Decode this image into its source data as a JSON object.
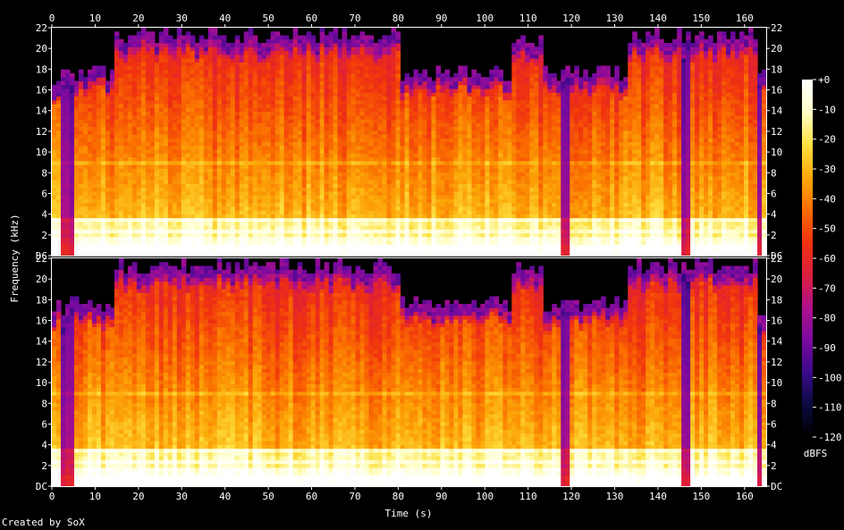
{
  "chart_data": {
    "type": "heatmap",
    "title": "",
    "xlabel": "Time (s)",
    "ylabel": "Frequency (kHz)",
    "xlim": [
      0,
      165
    ],
    "ylim": [
      0,
      22
    ],
    "x_ticks": [
      0,
      10,
      20,
      30,
      40,
      50,
      60,
      70,
      80,
      90,
      100,
      110,
      120,
      130,
      140,
      150,
      160
    ],
    "y_tick_labels": [
      "DC",
      "2",
      "4",
      "6",
      "8",
      "10",
      "12",
      "14",
      "16",
      "18",
      "20",
      "22"
    ],
    "channels": 2,
    "colorbar": {
      "label": "dBFS",
      "range": [
        -120,
        0
      ],
      "tick_labels": [
        "+0",
        "-10",
        "-20",
        "-30",
        "-40",
        "-50",
        "-60",
        "-70",
        "-80",
        "-90",
        "-100",
        "-110",
        "-120"
      ],
      "colors": [
        "#000000",
        "#0a0a40",
        "#3a0a8a",
        "#7a0aa0",
        "#b0108a",
        "#dc1e3c",
        "#f0320f",
        "#fa6e00",
        "#fcaa0a",
        "#fde040",
        "#ffffc8",
        "#ffffff"
      ]
    },
    "cutoff_segments_khz": [
      {
        "start": 0,
        "end": 4,
        "cutoff": 16
      },
      {
        "start": 4,
        "end": 14,
        "cutoff": 16.5
      },
      {
        "start": 14,
        "end": 80,
        "cutoff": 20
      },
      {
        "start": 80,
        "end": 106,
        "cutoff": 16.5
      },
      {
        "start": 106,
        "end": 113,
        "cutoff": 19.5
      },
      {
        "start": 113,
        "end": 133,
        "cutoff": 16.5
      },
      {
        "start": 133,
        "end": 163,
        "cutoff": 20
      },
      {
        "start": 163,
        "end": 165,
        "cutoff": 16
      }
    ],
    "bright_bands_khz": [
      0.3,
      0.8,
      1.5,
      2.5,
      3.5,
      9
    ],
    "quiet_moments_s": [
      3,
      4.5,
      118.5,
      146.5,
      163.5
    ]
  },
  "footer": {
    "credit": "Created by SoX"
  }
}
